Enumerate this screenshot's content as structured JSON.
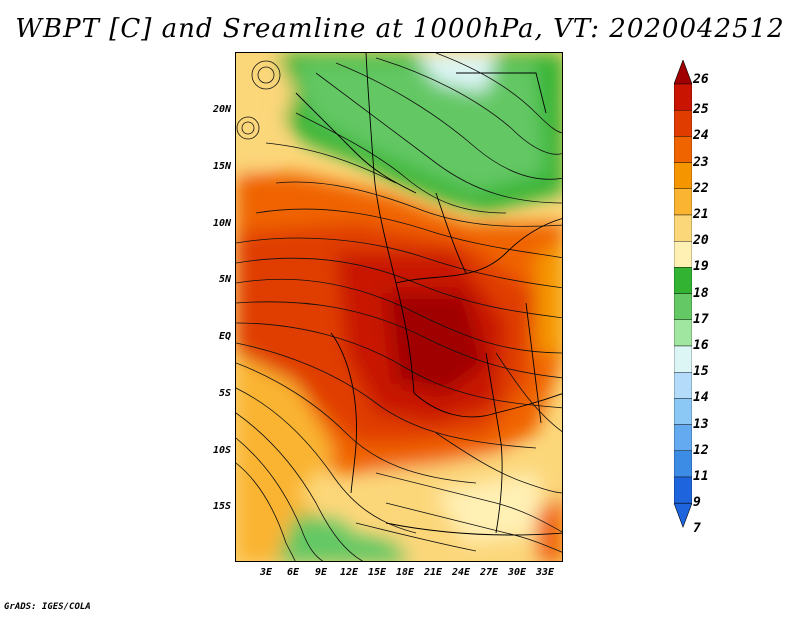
{
  "title": "WBPT [C] and Sreamline at 1000hPa, VT: 2020042512",
  "credit": "GrADS: IGES/COLA",
  "map": {
    "lat_labels": [
      "20N",
      "15N",
      "10N",
      "5N",
      "EQ",
      "5S",
      "10S",
      "15S"
    ],
    "lon_labels": [
      "3E",
      "6E",
      "9E",
      "12E",
      "15E",
      "18E",
      "21E",
      "24E",
      "27E",
      "30E",
      "33E"
    ]
  },
  "colorbar": {
    "labels": [
      "26",
      "25",
      "24",
      "23",
      "22",
      "21",
      "20",
      "19",
      "18",
      "17",
      "16",
      "15",
      "14",
      "13",
      "12",
      "11",
      "9",
      "7"
    ],
    "colors": [
      "#a00000",
      "#c81400",
      "#e03c00",
      "#f06400",
      "#f59600",
      "#fab432",
      "#fcd77a",
      "#fff0b4",
      "#32b432",
      "#64c864",
      "#a0e6a0",
      "#dcf5f5",
      "#b4dcfa",
      "#8cc8f5",
      "#64aaf0",
      "#3c8ce6",
      "#1e64dc",
      "#1e64dc"
    ]
  }
}
